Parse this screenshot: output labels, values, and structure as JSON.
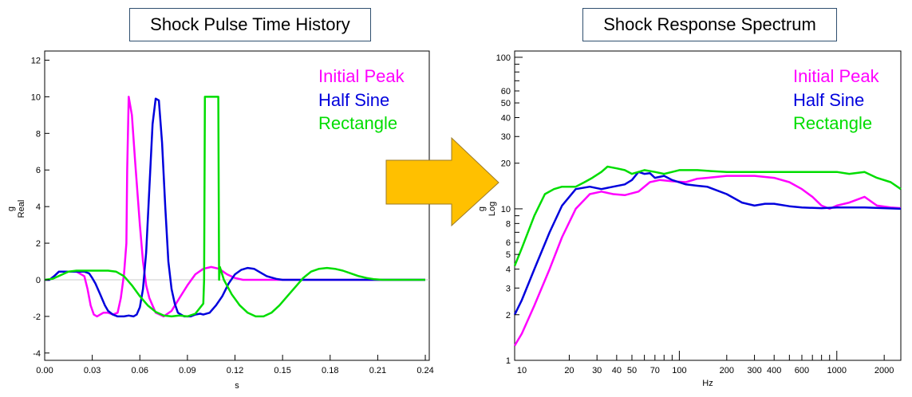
{
  "titles": {
    "left": "Shock Pulse Time History",
    "right": "Shock Response Spectrum"
  },
  "colors": {
    "initial_peak": "#ff00ff",
    "half_sine": "#0000dd",
    "rectangle": "#00dd00",
    "arrow": "#ffc000"
  },
  "chart_data": [
    {
      "type": "line",
      "title": "Shock Pulse Time History",
      "xlabel": "s",
      "ylabel_unit": "g",
      "ylabel_scale": "Real",
      "xlim": [
        0.0,
        0.2425
      ],
      "ylim": [
        -4.4,
        12.5
      ],
      "xticks": [
        0.0,
        0.03,
        0.06,
        0.09,
        0.12,
        0.15,
        0.18,
        0.21,
        0.24
      ],
      "xtick_labels": [
        "0.00",
        "0.03",
        "0.06",
        "0.09",
        "0.12",
        "0.15",
        "0.18",
        "0.21",
        "0.24"
      ],
      "yticks": [
        -4,
        -2,
        0,
        2,
        4,
        6,
        8,
        10,
        12
      ],
      "ytick_labels": [
        "-4",
        "-2",
        "0",
        "2",
        "4",
        "6",
        "8",
        "10",
        "12"
      ],
      "legend": [
        "Initial Peak",
        "Half Sine",
        "Rectangle"
      ],
      "series": [
        {
          "name": "Initial Peak",
          "x": [
            0.0,
            0.003,
            0.006,
            0.009,
            0.02,
            0.025,
            0.027,
            0.029,
            0.031,
            0.033,
            0.035,
            0.037,
            0.04,
            0.043,
            0.046,
            0.048,
            0.05,
            0.0515,
            0.052,
            0.053,
            0.055,
            0.057,
            0.06,
            0.062,
            0.064,
            0.066,
            0.07,
            0.075,
            0.08,
            0.085,
            0.09,
            0.095,
            0.1,
            0.105,
            0.11,
            0.115,
            0.12,
            0.125,
            0.13,
            0.24
          ],
          "y": [
            0.0,
            0.0,
            0.2,
            0.45,
            0.45,
            0.2,
            -0.5,
            -1.4,
            -1.9,
            -2.0,
            -1.9,
            -1.8,
            -1.8,
            -1.9,
            -1.8,
            -1.0,
            0.3,
            2.0,
            6.0,
            10.0,
            9.0,
            6.5,
            3.0,
            1.0,
            -0.3,
            -1.0,
            -1.8,
            -2.0,
            -1.7,
            -1.0,
            -0.3,
            0.3,
            0.6,
            0.7,
            0.6,
            0.3,
            0.1,
            0.0,
            0.0,
            0.0
          ]
        },
        {
          "name": "Half Sine",
          "x": [
            0.0,
            0.003,
            0.006,
            0.009,
            0.025,
            0.028,
            0.03,
            0.032,
            0.035,
            0.038,
            0.04,
            0.043,
            0.046,
            0.05,
            0.053,
            0.056,
            0.058,
            0.06,
            0.062,
            0.064,
            0.066,
            0.068,
            0.07,
            0.072,
            0.074,
            0.076,
            0.078,
            0.08,
            0.082,
            0.084,
            0.088,
            0.092,
            0.095,
            0.098,
            0.1,
            0.104,
            0.108,
            0.112,
            0.116,
            0.12,
            0.124,
            0.128,
            0.132,
            0.136,
            0.14,
            0.146,
            0.15,
            0.24
          ],
          "y": [
            0.0,
            0.0,
            0.2,
            0.45,
            0.45,
            0.35,
            0.1,
            -0.2,
            -0.8,
            -1.4,
            -1.7,
            -1.9,
            -2.0,
            -2.0,
            -1.95,
            -2.0,
            -1.9,
            -1.5,
            -0.5,
            1.5,
            5.0,
            8.5,
            9.9,
            9.8,
            7.5,
            4.0,
            1.0,
            -0.5,
            -1.3,
            -1.8,
            -2.0,
            -2.0,
            -1.9,
            -1.85,
            -1.9,
            -1.8,
            -1.4,
            -0.9,
            -0.2,
            0.3,
            0.55,
            0.65,
            0.6,
            0.4,
            0.2,
            0.05,
            0.0,
            0.0
          ]
        },
        {
          "name": "Rectangle",
          "x": [
            0.0,
            0.005,
            0.01,
            0.015,
            0.02,
            0.025,
            0.04,
            0.045,
            0.05,
            0.055,
            0.06,
            0.065,
            0.07,
            0.075,
            0.08,
            0.085,
            0.09,
            0.095,
            0.1,
            0.1005,
            0.101,
            0.1095,
            0.11,
            0.1105,
            0.113,
            0.118,
            0.123,
            0.128,
            0.133,
            0.138,
            0.143,
            0.148,
            0.153,
            0.158,
            0.163,
            0.168,
            0.173,
            0.178,
            0.183,
            0.188,
            0.193,
            0.198,
            0.203,
            0.208,
            0.213,
            0.218,
            0.24
          ],
          "y": [
            0.0,
            0.05,
            0.25,
            0.45,
            0.5,
            0.5,
            0.5,
            0.45,
            0.2,
            -0.3,
            -0.9,
            -1.4,
            -1.75,
            -1.95,
            -2.0,
            -1.95,
            -2.0,
            -1.85,
            -1.3,
            0.0,
            10.0,
            10.0,
            0.0,
            0.7,
            0.0,
            -0.8,
            -1.4,
            -1.8,
            -2.0,
            -2.0,
            -1.8,
            -1.4,
            -0.9,
            -0.4,
            0.1,
            0.45,
            0.6,
            0.65,
            0.6,
            0.5,
            0.35,
            0.2,
            0.1,
            0.03,
            0.0,
            0.0,
            0.0
          ]
        }
      ]
    },
    {
      "type": "line",
      "title": "Shock Response Spectrum",
      "xlabel": "Hz",
      "ylabel_unit": "g",
      "ylabel_scale": "Log",
      "xscale": "log",
      "yscale": "log",
      "xlim": [
        9.0,
        2550.0
      ],
      "ylim": [
        1.0,
        110.0
      ],
      "xtick_labels": [
        "10",
        "20",
        "30",
        "40",
        "50",
        "70",
        "100",
        "200",
        "300",
        "400",
        "600",
        "1000",
        "2000"
      ],
      "xtick_values": [
        10,
        20,
        30,
        40,
        50,
        70,
        100,
        200,
        300,
        400,
        600,
        1000,
        2000
      ],
      "ytick_labels": [
        "1",
        "2",
        "3",
        "4",
        "5",
        "6",
        "8",
        "10",
        "20",
        "30",
        "40",
        "50",
        "60",
        "100"
      ],
      "ytick_values": [
        1,
        2,
        3,
        4,
        5,
        6,
        8,
        10,
        20,
        30,
        40,
        50,
        60,
        100
      ],
      "legend": [
        "Initial Peak",
        "Half Sine",
        "Rectangle"
      ],
      "series": [
        {
          "name": "Initial Peak",
          "x": [
            9,
            10,
            12,
            15,
            18,
            22,
            27,
            32,
            38,
            45,
            55,
            65,
            75,
            90,
            110,
            130,
            150,
            200,
            250,
            300,
            400,
            500,
            600,
            700,
            800,
            900,
            1000,
            1200,
            1500,
            1800,
            2200,
            2550
          ],
          "y": [
            1.25,
            1.5,
            2.3,
            4.0,
            6.5,
            10.0,
            12.5,
            13.0,
            12.5,
            12.3,
            13.0,
            15.0,
            15.5,
            15.2,
            15.0,
            15.8,
            16.0,
            16.5,
            16.5,
            16.5,
            16.0,
            15.0,
            13.5,
            12.0,
            10.5,
            10.0,
            10.5,
            11.0,
            12.0,
            10.5,
            10.2,
            10.1
          ]
        },
        {
          "name": "Half Sine",
          "x": [
            9,
            10,
            12,
            15,
            18,
            22,
            27,
            32,
            38,
            45,
            50,
            55,
            60,
            65,
            70,
            80,
            90,
            110,
            130,
            150,
            200,
            250,
            300,
            350,
            400,
            500,
            600,
            800,
            1000,
            1500,
            2000,
            2550
          ],
          "y": [
            2.0,
            2.5,
            4.0,
            7.0,
            10.5,
            13.5,
            14.0,
            13.5,
            14.0,
            14.5,
            15.5,
            17.5,
            17.0,
            17.2,
            16.0,
            16.5,
            15.5,
            14.5,
            14.2,
            14.0,
            12.5,
            11.0,
            10.5,
            10.8,
            10.8,
            10.4,
            10.2,
            10.1,
            10.2,
            10.2,
            10.1,
            10.0
          ]
        },
        {
          "name": "Rectangle",
          "x": [
            9,
            10,
            12,
            14,
            16,
            18,
            20,
            22,
            25,
            28,
            32,
            35,
            40,
            45,
            50,
            55,
            60,
            70,
            80,
            90,
            100,
            130,
            150,
            200,
            300,
            400,
            500,
            600,
            800,
            1000,
            1200,
            1500,
            1800,
            2200,
            2550
          ],
          "y": [
            4.2,
            5.5,
            9.0,
            12.5,
            13.5,
            14.0,
            14.0,
            14.0,
            15.0,
            16.0,
            17.5,
            19.0,
            18.5,
            18.0,
            17.0,
            17.5,
            18.0,
            17.5,
            17.0,
            17.5,
            18.0,
            18.0,
            17.8,
            17.5,
            17.5,
            17.5,
            17.5,
            17.5,
            17.5,
            17.5,
            17.0,
            17.5,
            16.0,
            15.0,
            13.5
          ]
        }
      ]
    }
  ]
}
